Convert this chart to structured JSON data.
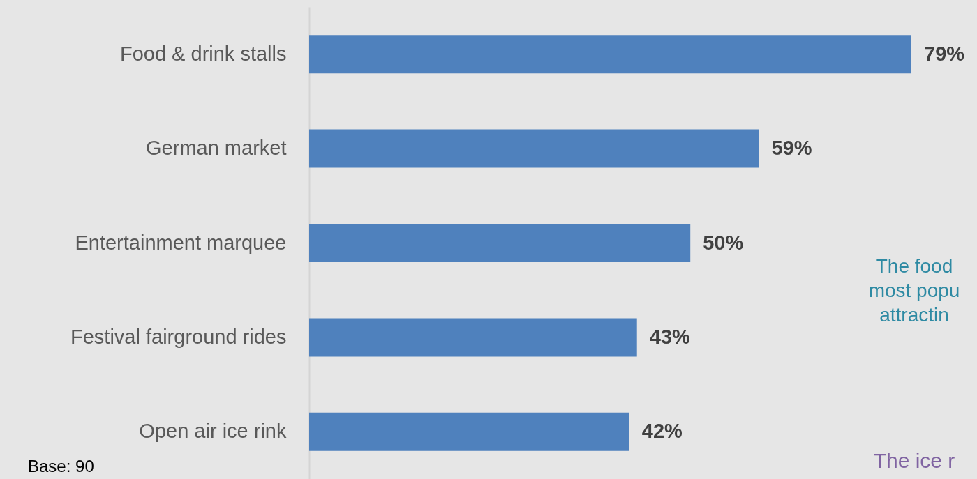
{
  "chart_data": {
    "type": "bar",
    "orientation": "horizontal",
    "categories": [
      "Food & drink stalls",
      "German market",
      "Entertainment marquee",
      "Festival fairground rides",
      "Open air ice rink"
    ],
    "values": [
      79,
      59,
      50,
      43,
      42
    ],
    "value_labels": [
      "79%",
      "59%",
      "50%",
      "43%",
      "42%"
    ],
    "color": "#4f81bd",
    "annotations": [
      "The food",
      "most popu",
      "attractin",
      "The ice r",
      "Base: 90"
    ]
  }
}
